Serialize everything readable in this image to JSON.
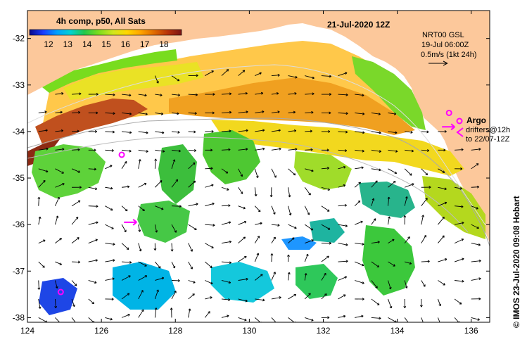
{
  "colorbar": {
    "title": "4h comp, p50, All Sats",
    "ticks": [
      "12",
      "13",
      "14",
      "15",
      "16",
      "17",
      "18"
    ],
    "colors": [
      "#08088a",
      "#1a3cff",
      "#00a0ff",
      "#00d2d2",
      "#23c84b",
      "#78dc1e",
      "#d2e61e",
      "#ffd700",
      "#ffa500",
      "#e06a00",
      "#b8320a",
      "#7a1414"
    ]
  },
  "date_label": "21-Jul-2020 12Z",
  "map_info": {
    "line1": "NRT00 GSL",
    "line2": "19-Jul 06:00Z",
    "scale_label": "0.5m/s (1kt 24h)"
  },
  "legend": {
    "argo_label": "Argo",
    "drifters_line1": "drifters@12h",
    "drifters_line2": "to 22/07-12Z"
  },
  "credit": "©  IMOS 23-Jul-2020 09:08 Hobart",
  "axes": {
    "x_ticks": [
      "124",
      "126",
      "128",
      "130",
      "132",
      "134",
      "136"
    ],
    "y_ticks": [
      "-32",
      "-33",
      "-34",
      "-35",
      "-36",
      "-37",
      "-38"
    ]
  },
  "map_data": {
    "lon_range": [
      124,
      136.5
    ],
    "lat_range": [
      -38.1,
      -31.4
    ],
    "land_color": "#fcc89b",
    "ocean_color": "#ffffff",
    "argo_floats": [
      {
        "lon": 126.55,
        "lat": -34.5
      },
      {
        "lon": 124.9,
        "lat": -37.45
      },
      {
        "lon": 135.4,
        "lat": -33.6
      }
    ],
    "drifters": [
      {
        "lon": 126.8,
        "lat": -35.95
      },
      {
        "lon": 135.4,
        "lat": -33.9
      }
    ]
  }
}
